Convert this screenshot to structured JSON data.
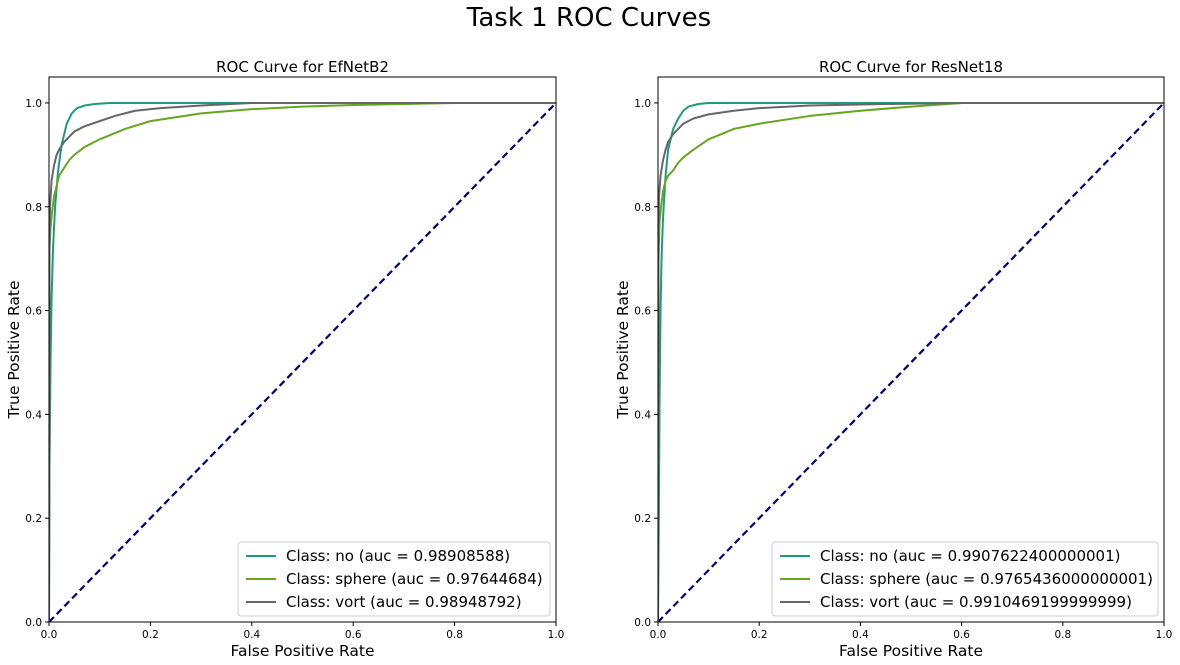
{
  "figure": {
    "title": "Task 1 ROC Curves"
  },
  "colors": {
    "no": "#1b9e77",
    "sphere": "#66a61e",
    "vort": "#666666",
    "diagonal": "#000080"
  },
  "chart_data": [
    {
      "type": "line",
      "title": "ROC Curve for EfNetB2",
      "xlabel": "False Positive Rate",
      "ylabel": "True Positive Rate",
      "xlim": [
        0,
        1
      ],
      "ylim": [
        0,
        1.05
      ],
      "xticks": [
        "0.0",
        "0.2",
        "0.4",
        "0.6",
        "0.8",
        "1.0"
      ],
      "yticks": [
        "0.0",
        "0.2",
        "0.4",
        "0.6",
        "0.8",
        "1.0"
      ],
      "grid": false,
      "legend_position": "lower right",
      "series": [
        {
          "name": "Class: no (auc = 0.98908588)",
          "color": "#1b9e77",
          "x": [
            0,
            0.001,
            0.003,
            0.005,
            0.008,
            0.012,
            0.018,
            0.025,
            0.035,
            0.045,
            0.055,
            0.07,
            0.09,
            0.12,
            0.2,
            0.4,
            1.0
          ],
          "y": [
            0,
            0.3,
            0.5,
            0.62,
            0.72,
            0.8,
            0.87,
            0.92,
            0.96,
            0.98,
            0.99,
            0.995,
            0.998,
            1.0,
            1.0,
            1.0,
            1.0
          ]
        },
        {
          "name": "Class: sphere (auc = 0.97644684)",
          "color": "#66a61e",
          "x": [
            0,
            0.001,
            0.003,
            0.006,
            0.01,
            0.015,
            0.02,
            0.03,
            0.04,
            0.05,
            0.07,
            0.1,
            0.15,
            0.2,
            0.3,
            0.4,
            0.5,
            0.6,
            0.7,
            0.8,
            1.0
          ],
          "y": [
            0,
            0.72,
            0.76,
            0.79,
            0.82,
            0.84,
            0.86,
            0.875,
            0.89,
            0.9,
            0.915,
            0.93,
            0.95,
            0.965,
            0.98,
            0.988,
            0.993,
            0.996,
            0.998,
            1.0,
            1.0
          ]
        },
        {
          "name": "Class: vort (auc = 0.98948792)",
          "color": "#666666",
          "x": [
            0,
            0.001,
            0.002,
            0.005,
            0.01,
            0.015,
            0.02,
            0.03,
            0.04,
            0.05,
            0.07,
            0.1,
            0.13,
            0.17,
            0.22,
            0.3,
            0.4,
            0.6,
            1.0
          ],
          "y": [
            0,
            0.74,
            0.8,
            0.85,
            0.88,
            0.9,
            0.91,
            0.925,
            0.935,
            0.945,
            0.955,
            0.965,
            0.975,
            0.985,
            0.99,
            0.995,
            1.0,
            1.0,
            1.0
          ]
        }
      ]
    },
    {
      "type": "line",
      "title": "ROC Curve for ResNet18",
      "xlabel": "False Positive Rate",
      "ylabel": "True Positive Rate",
      "xlim": [
        0,
        1
      ],
      "ylim": [
        0,
        1.05
      ],
      "xticks": [
        "0.0",
        "0.2",
        "0.4",
        "0.6",
        "0.8",
        "1.0"
      ],
      "yticks": [
        "0.0",
        "0.2",
        "0.4",
        "0.6",
        "0.8",
        "1.0"
      ],
      "grid": false,
      "legend_position": "lower right",
      "series": [
        {
          "name": "Class: no (auc = 0.9907622400000001)",
          "color": "#1b9e77",
          "x": [
            0,
            0.002,
            0.003,
            0.005,
            0.007,
            0.01,
            0.015,
            0.02,
            0.03,
            0.04,
            0.05,
            0.06,
            0.08,
            0.1,
            0.2,
            0.4,
            1.0
          ],
          "y": [
            0,
            0.25,
            0.42,
            0.6,
            0.7,
            0.78,
            0.86,
            0.91,
            0.95,
            0.97,
            0.985,
            0.993,
            0.998,
            1.0,
            1.0,
            1.0,
            1.0
          ]
        },
        {
          "name": "Class: sphere (auc = 0.9765436000000001)",
          "color": "#66a61e",
          "x": [
            0,
            0.001,
            0.003,
            0.006,
            0.01,
            0.015,
            0.02,
            0.03,
            0.04,
            0.05,
            0.07,
            0.1,
            0.15,
            0.2,
            0.3,
            0.4,
            0.5,
            0.6,
            1.0
          ],
          "y": [
            0,
            0.7,
            0.77,
            0.8,
            0.83,
            0.85,
            0.86,
            0.87,
            0.885,
            0.895,
            0.91,
            0.93,
            0.95,
            0.96,
            0.975,
            0.985,
            0.993,
            1.0,
            1.0
          ]
        },
        {
          "name": "Class: vort (auc = 0.9910469199999999)",
          "color": "#666666",
          "x": [
            0,
            0.001,
            0.002,
            0.005,
            0.01,
            0.015,
            0.02,
            0.03,
            0.04,
            0.05,
            0.07,
            0.1,
            0.15,
            0.2,
            0.3,
            0.45,
            0.6,
            1.0
          ],
          "y": [
            0,
            0.76,
            0.82,
            0.86,
            0.89,
            0.91,
            0.925,
            0.94,
            0.95,
            0.96,
            0.97,
            0.978,
            0.985,
            0.99,
            0.995,
            0.998,
            1.0,
            1.0
          ]
        }
      ]
    }
  ]
}
